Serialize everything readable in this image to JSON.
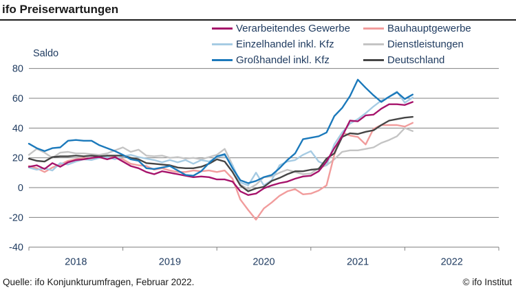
{
  "header": {
    "title": "ifo Preiserwartungen"
  },
  "footer": {
    "source": "Quelle: ifo Konjunkturumfragen, Februar 2022.",
    "copyright": "© ifo Institut"
  },
  "chart_data": {
    "type": "line",
    "title": "ifo Preiserwartungen",
    "y_axis_title": "Saldo",
    "ylim": [
      -40,
      80
    ],
    "y_ticks": [
      80,
      60,
      40,
      20,
      0,
      -20,
      -40
    ],
    "grid": true,
    "legend_position": "top-right",
    "legend_columns": 2,
    "x_start": "2018-01",
    "x_end": "2022-02",
    "frequency": "monthly",
    "x_year_labels": [
      "2018",
      "2019",
      "2020",
      "2021",
      "2022"
    ],
    "series": [
      {
        "id": "verarbeitendes",
        "name": "Verarbeitendes Gewerbe",
        "color": "#a6136b",
        "values": [
          14,
          15,
          12.5,
          16.5,
          14,
          17,
          18.5,
          19,
          20,
          20.5,
          19,
          20.5,
          17.5,
          14.5,
          13,
          10.5,
          9,
          11,
          10,
          9,
          8,
          7,
          7.5,
          7,
          5.5,
          5.5,
          4,
          -2.5,
          -5,
          -4,
          -0.5,
          1.5,
          3,
          4,
          6,
          7.5,
          8,
          11,
          17.5,
          26.5,
          34.5,
          45,
          44.5,
          48.5,
          49,
          53,
          56,
          56,
          55.5,
          57.5
        ]
      },
      {
        "id": "bauhauptgewerbe",
        "name": "Bauhauptgewerbe",
        "color": "#f19c9c",
        "values": [
          14.5,
          13,
          10.5,
          13.5,
          15.5,
          18,
          19,
          20,
          19,
          20,
          21.5,
          20.5,
          19,
          16,
          15,
          14.5,
          12,
          13,
          11.5,
          10.5,
          10.5,
          11.5,
          11,
          11.5,
          10.5,
          11.5,
          6,
          -8,
          -15,
          -21.5,
          -14,
          -10,
          -5.5,
          -2.5,
          -1,
          -4.5,
          -4,
          -2,
          1.5,
          22,
          37,
          35,
          34,
          29,
          39.5,
          42,
          42,
          42,
          41,
          43.5
        ]
      },
      {
        "id": "einzelhandel",
        "name": "Einzelhandel inkl. Kfz",
        "color": "#a6cbe3",
        "values": [
          13.5,
          12,
          13,
          11.5,
          16.5,
          15.5,
          17.5,
          19,
          18.5,
          20,
          20.5,
          19,
          21,
          22,
          20.5,
          19.5,
          18.5,
          17,
          18.5,
          17,
          18.5,
          16,
          18.5,
          17.5,
          20.5,
          21.5,
          15,
          3.5,
          1.5,
          10,
          1.5,
          5,
          15,
          17.5,
          18.5,
          22,
          24.5,
          17.5,
          15,
          29,
          37,
          43,
          46,
          50,
          54.5,
          58.5,
          61,
          64.5,
          57,
          60.5
        ]
      },
      {
        "id": "dienstleistungen",
        "name": "Dienstleistungen",
        "color": "#c4c4c4",
        "values": [
          22,
          26,
          23.5,
          20,
          23.5,
          24,
          23,
          23,
          22.5,
          22,
          23,
          25,
          27,
          24,
          25.5,
          21.5,
          21,
          21.5,
          20,
          20.5,
          19.5,
          20,
          19,
          20.5,
          22,
          26,
          15,
          2,
          -1,
          2,
          7,
          7.5,
          10,
          12,
          10.5,
          9,
          9.5,
          13,
          15,
          19,
          24,
          25,
          25,
          26,
          27,
          30,
          32,
          34.5,
          40,
          38
        ]
      },
      {
        "id": "grosshandel",
        "name": "Großhandel inkl. Kfz",
        "color": "#1b79bb",
        "values": [
          29.5,
          26.5,
          24.5,
          26.5,
          27,
          31.5,
          32,
          31.5,
          31.5,
          28.5,
          26.5,
          24.5,
          22,
          19,
          18,
          13,
          12.5,
          13.5,
          14.5,
          11.5,
          8.5,
          8,
          11,
          16.5,
          21,
          22.5,
          13,
          5,
          3,
          4.5,
          7,
          8.5,
          13,
          18.5,
          23,
          32.5,
          33.5,
          34.5,
          37,
          48,
          53.5,
          61.5,
          72.5,
          67,
          62,
          57.5,
          61,
          64,
          59.5,
          62.5
        ]
      },
      {
        "id": "deutschland",
        "name": "Deutschland",
        "color": "#454545",
        "values": [
          19.5,
          18,
          17.5,
          20.5,
          21,
          21,
          21.5,
          21,
          21.5,
          21,
          21.5,
          21.5,
          21.5,
          20,
          19,
          16.5,
          16,
          15.5,
          15,
          13.5,
          13,
          13,
          14,
          16,
          19,
          17.5,
          10.5,
          1.5,
          -2.5,
          -0.5,
          0.5,
          4.5,
          6.5,
          9,
          11,
          11,
          12,
          12.5,
          19.5,
          23,
          34,
          36.5,
          36,
          37.5,
          38.5,
          42,
          45,
          46,
          47,
          47.5
        ]
      }
    ]
  }
}
